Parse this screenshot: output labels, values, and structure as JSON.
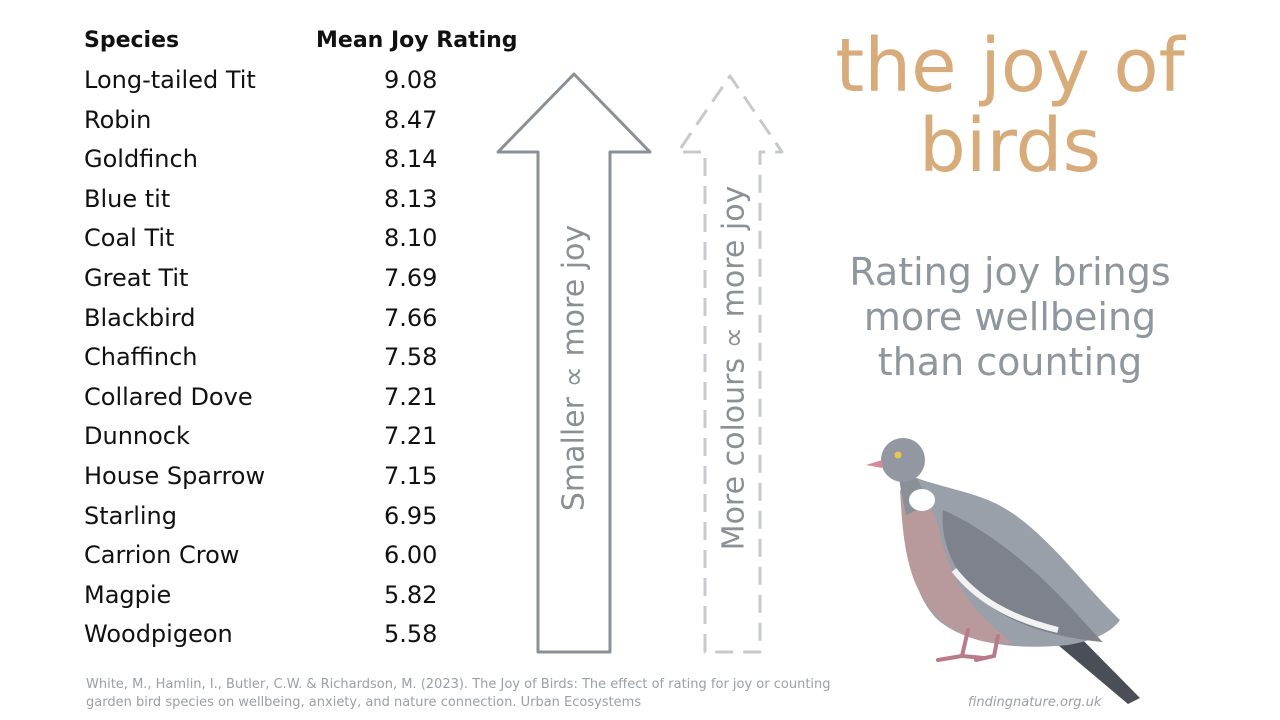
{
  "table": {
    "header_species": "Species",
    "header_rating": "Mean Joy Rating",
    "rows": [
      {
        "species": "Long-tailed Tit",
        "rating": "9.08"
      },
      {
        "species": "Robin",
        "rating": "8.47"
      },
      {
        "species": "Goldfinch",
        "rating": "8.14"
      },
      {
        "species": "Blue tit",
        "rating": "8.13"
      },
      {
        "species": "Coal Tit",
        "rating": "8.10"
      },
      {
        "species": "Great Tit",
        "rating": "7.69"
      },
      {
        "species": "Blackbird",
        "rating": "7.66"
      },
      {
        "species": "Chaffinch",
        "rating": "7.58"
      },
      {
        "species": "Collared Dove",
        "rating": "7.21"
      },
      {
        "species": "Dunnock",
        "rating": "7.21"
      },
      {
        "species": "House Sparrow",
        "rating": "7.15"
      },
      {
        "species": "Starling",
        "rating": "6.95"
      },
      {
        "species": "Carrion Crow",
        "rating": "6.00"
      },
      {
        "species": "Magpie",
        "rating": "5.82"
      },
      {
        "species": "Woodpigeon",
        "rating": "5.58"
      }
    ]
  },
  "arrows": {
    "solid_label": "Smaller ∝ more joy",
    "dashed_label": "More colours ∝ more joy"
  },
  "title": {
    "line1": "the joy of",
    "line2": "birds"
  },
  "subtitle": {
    "line1": "Rating joy brings",
    "line2": "more wellbeing",
    "line3": "than counting"
  },
  "citation": {
    "line1": "White, M., Hamlin, I., Butler, C.W. & Richardson, M. (2023). The Joy of Birds: The effect of rating for joy or counting",
    "line2": "garden bird species on wellbeing, anxiety, and nature connection. Urban Ecosystems"
  },
  "site": "findingnature.org.uk",
  "colors": {
    "title": "#d8ab7a",
    "subtitle": "#8e969e",
    "arrow_stroke": "#8a9096",
    "dashed_stroke": "#c6cacd"
  },
  "images": {
    "bird": "woodpigeon-photo"
  }
}
